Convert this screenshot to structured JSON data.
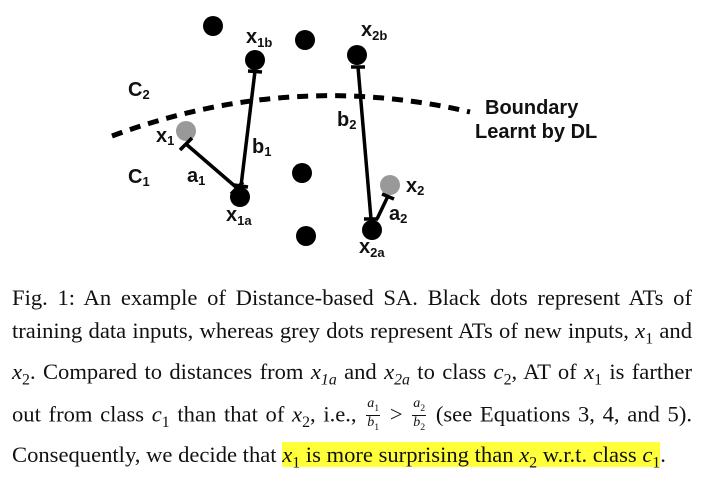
{
  "diagram": {
    "labels": {
      "x1b": {
        "main": "x",
        "sub": "1b"
      },
      "x2b": {
        "main": "x",
        "sub": "2b"
      },
      "c2": {
        "main": "C",
        "sub": "2"
      },
      "c1": {
        "main": "C",
        "sub": "1"
      },
      "x1": {
        "main": "x",
        "sub": "1"
      },
      "a1": {
        "main": "a",
        "sub": "1"
      },
      "b1": {
        "main": "b",
        "sub": "1"
      },
      "b2": {
        "main": "b",
        "sub": "2"
      },
      "x1a": {
        "main": "x",
        "sub": "1a"
      },
      "x2": {
        "main": "x",
        "sub": "2"
      },
      "a2": {
        "main": "a",
        "sub": "2"
      },
      "x2a": {
        "main": "x",
        "sub": "2a"
      },
      "boundary_line1": "Boundary",
      "boundary_line2": "Learnt by DL"
    },
    "colors": {
      "training_dot": "#000000",
      "new_dot": "#999999",
      "highlight": "#ffff3a"
    }
  },
  "caption": {
    "p1": "Fig. 1: An example of Distance-based SA. Black dots represent ATs of training data inputs, whereas grey dots represent ATs of new inputs, ",
    "x1": "x",
    "x1_sub": "1",
    "and1": " and ",
    "x2": "x",
    "x2_sub": "2",
    "p2": ". Compared to distances from ",
    "x1a": "x",
    "x1a_sub": "1a",
    "and2": " and ",
    "x2a": "x",
    "x2a_sub": "2a",
    "p3": " to class ",
    "c2": "c",
    "c2_sub": "2",
    "p4": ", AT of ",
    "x1b": "x",
    "x1b_sub": "1",
    "p5": " is farther out from class ",
    "c1": "c",
    "c1_sub": "1",
    "p6": " than that of ",
    "x2b": "x",
    "x2b_sub": "2",
    "p7": ", i.e., ",
    "frac1_num": "a",
    "frac1_num_sub": "1",
    "frac1_den": "b",
    "frac1_den_sub": "1",
    "gt": " > ",
    "frac2_num": "a",
    "frac2_num_sub": "2",
    "frac2_den": "b",
    "frac2_den_sub": "2",
    "p8": " (see Equations 3, 4, and 5). Consequently, we decide that ",
    "hl_x1": "x",
    "hl_x1_sub": "1",
    "hl_mid": " is more surprising than ",
    "hl_x2": "x",
    "hl_x2_sub": "2",
    "hl_p": " w.r.t. class ",
    "hl_c1": "c",
    "hl_c1_sub": "1",
    "end": "."
  }
}
